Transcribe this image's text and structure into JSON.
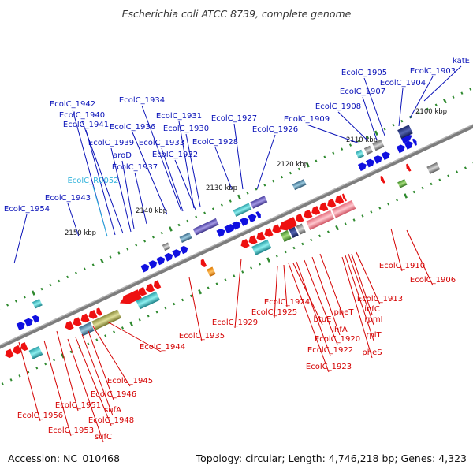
{
  "title": "Escherichia coli ATCC 8739, complete genome",
  "footer": {
    "accession": "Accession: NC_010468",
    "topology": "Topology: circular; Length: 4,746,218 bp; Genes: 4,323"
  },
  "colors": {
    "forward_label": "#0a12b8",
    "reverse_label": "#d40000",
    "rna_label": "#33b4dc",
    "tick": "#2f8a2f",
    "backbone": "#7d7d7d"
  },
  "scale": {
    "unit": "kbp",
    "ticks": [
      {
        "label": "2100 kbp"
      },
      {
        "label": "2110 kbp"
      },
      {
        "label": "2120 kbp"
      },
      {
        "label": "2130 kbp"
      },
      {
        "label": "2140 kbp"
      },
      {
        "label": "2150 kbp"
      }
    ]
  },
  "forward_genes": [
    {
      "label": "katE"
    },
    {
      "label": "EcolC_1903"
    },
    {
      "label": "EcolC_1904"
    },
    {
      "label": "EcolC_1905"
    },
    {
      "label": "EcolC_1907"
    },
    {
      "label": "EcolC_1908"
    },
    {
      "label": "EcolC_1909"
    },
    {
      "label": "EcolC_1926"
    },
    {
      "label": "EcolC_1927"
    },
    {
      "label": "EcolC_1928"
    },
    {
      "label": "EcolC_1930"
    },
    {
      "label": "EcolC_1931"
    },
    {
      "label": "EcolC_1932"
    },
    {
      "label": "EcolC_1933"
    },
    {
      "label": "EcolC_1934"
    },
    {
      "label": "EcolC_1936"
    },
    {
      "label": "EcolC_1937"
    },
    {
      "label": "aroD"
    },
    {
      "label": "EcolC_1939"
    },
    {
      "label": "EcolC_1940"
    },
    {
      "label": "EcolC_1941"
    },
    {
      "label": "EcolC_1942"
    },
    {
      "label": "EcolC_1943"
    },
    {
      "label": "EcolC_R0052"
    },
    {
      "label": "EcolC_1954"
    }
  ],
  "reverse_genes": [
    {
      "label": "EcolC_1906"
    },
    {
      "label": "EcolC_1910"
    },
    {
      "label": "EcolC_1913"
    },
    {
      "label": "infC"
    },
    {
      "label": "rpmI"
    },
    {
      "label": "rplT"
    },
    {
      "label": "pheS"
    },
    {
      "label": "pheT"
    },
    {
      "label": "ihfA"
    },
    {
      "label": "EcolC_1920"
    },
    {
      "label": "EcolC_1922"
    },
    {
      "label": "EcolC_1923"
    },
    {
      "label": "btuE"
    },
    {
      "label": "EcolC_1924"
    },
    {
      "label": "EcolC_1925"
    },
    {
      "label": "EcolC_1929"
    },
    {
      "label": "EcolC_1935"
    },
    {
      "label": "EcolC_1944"
    },
    {
      "label": "EcolC_1945"
    },
    {
      "label": "EcolC_1946"
    },
    {
      "label": "sufA"
    },
    {
      "label": "EcolC_1948"
    },
    {
      "label": "EcolC_1951"
    },
    {
      "label": "sufC"
    },
    {
      "label": "EcolC_1953"
    },
    {
      "label": "EcolC_1956"
    }
  ]
}
